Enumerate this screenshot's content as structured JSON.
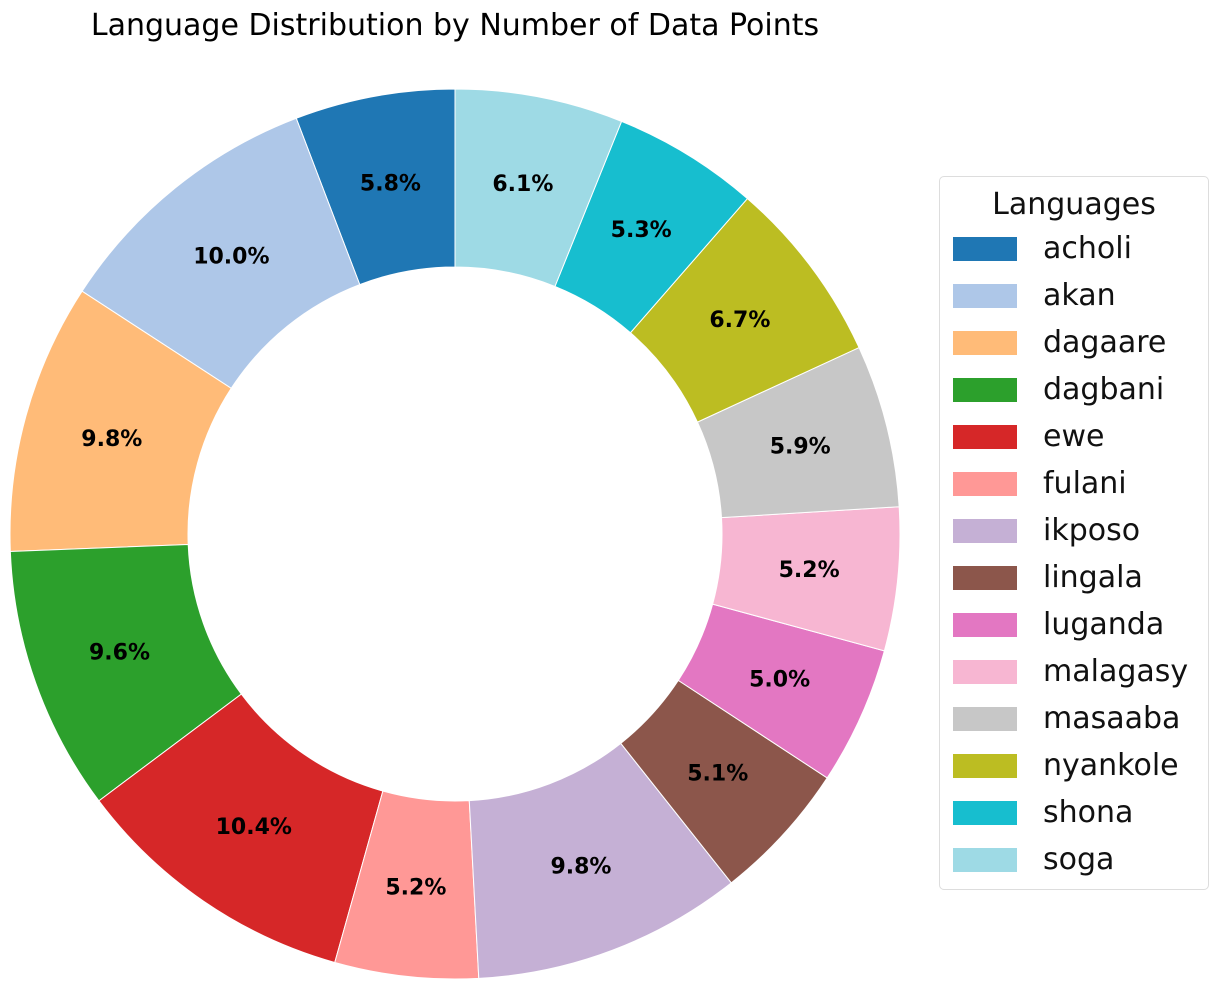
{
  "chart_data": {
    "type": "pie",
    "subtype": "donut",
    "title": "Language Distribution by Number of Data Points",
    "legend_title": "Languages",
    "legend_position": "right",
    "start": "top, counter-clockwise",
    "slices": [
      {
        "label": "acholi",
        "value": 5.8,
        "display": "5.8%",
        "color": "#1f77b4"
      },
      {
        "label": "akan",
        "value": 10.0,
        "display": "10.0%",
        "color": "#aec7e8"
      },
      {
        "label": "dagaare",
        "value": 9.8,
        "display": "9.8%",
        "color": "#ffbb78"
      },
      {
        "label": "dagbani",
        "value": 9.6,
        "display": "9.6%",
        "color": "#2ca02c"
      },
      {
        "label": "ewe",
        "value": 10.4,
        "display": "10.4%",
        "color": "#d62728"
      },
      {
        "label": "fulani",
        "value": 5.2,
        "display": "5.2%",
        "color": "#ff9896"
      },
      {
        "label": "ikposo",
        "value": 9.8,
        "display": "9.8%",
        "color": "#c5b0d5"
      },
      {
        "label": "lingala",
        "value": 5.1,
        "display": "5.1%",
        "color": "#8c564b"
      },
      {
        "label": "luganda",
        "value": 5.0,
        "display": "5.0%",
        "color": "#e377c2"
      },
      {
        "label": "malagasy",
        "value": 5.2,
        "display": "5.2%",
        "color": "#f7b6d2"
      },
      {
        "label": "masaaba",
        "value": 5.9,
        "display": "5.9%",
        "color": "#c7c7c7"
      },
      {
        "label": "nyankole",
        "value": 6.7,
        "display": "6.7%",
        "color": "#bcbd22"
      },
      {
        "label": "shona",
        "value": 5.3,
        "display": "5.3%",
        "color": "#17becf"
      },
      {
        "label": "soga",
        "value": 6.1,
        "display": "6.1%",
        "color": "#9edae5"
      }
    ]
  }
}
